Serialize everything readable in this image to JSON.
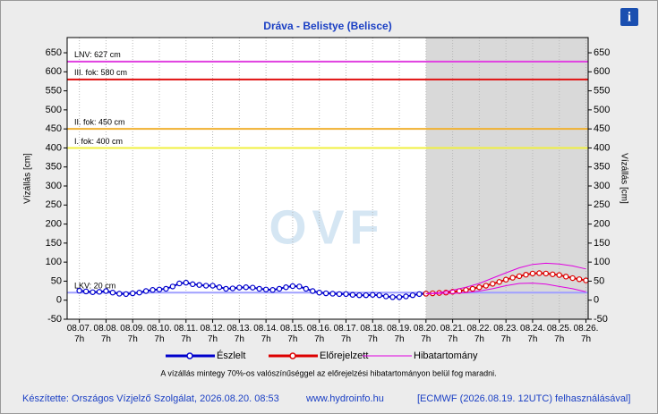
{
  "chart_data": {
    "type": "line",
    "title": "Dráva - Belistye (Belisce)",
    "y_label": "Vízállás [cm]",
    "watermark": "OVF",
    "ylim": [
      -50,
      690
    ],
    "yticks": [
      -50,
      0,
      50,
      100,
      150,
      200,
      250,
      300,
      350,
      400,
      450,
      500,
      550,
      600,
      650
    ],
    "xlim": [
      "08.06. 20h",
      "08.26. 9h"
    ],
    "xticks": [
      "08.07. 7h",
      "08.08. 7h",
      "08.09. 7h",
      "08.10. 7h",
      "08.11. 7h",
      "08.12. 7h",
      "08.13. 7h",
      "08.14. 7h",
      "08.15. 7h",
      "08.16. 7h",
      "08.17. 7h",
      "08.18. 7h",
      "08.19. 7h",
      "08.20. 7h",
      "08.21. 7h",
      "08.22. 7h",
      "08.23. 7h",
      "08.24. 7h",
      "08.25. 7h",
      "08.26. 7h"
    ],
    "grid": true,
    "reference_lines": [
      {
        "label": "LNV: 627 cm",
        "value": 627,
        "color": "#e040e0"
      },
      {
        "label": "III. fok: 580 cm",
        "value": 580,
        "color": "#e01010"
      },
      {
        "label": "II. fok: 450 cm",
        "value": 450,
        "color": "#f0b030"
      },
      {
        "label": "I. fok: 400 cm",
        "value": 400,
        "color": "#f0f040"
      },
      {
        "label": "LKV: 20 cm",
        "value": 20,
        "color": "#a0a0ff"
      }
    ],
    "series": [
      {
        "name": "Észlelt",
        "color": "#0000cc",
        "x": [
          "08.07. 7h",
          "08.07. 13h",
          "08.07. 19h",
          "08.08. 1h",
          "08.08. 7h",
          "08.08. 13h",
          "08.08. 19h",
          "08.09. 1h",
          "08.09. 7h",
          "08.09. 13h",
          "08.09. 19h",
          "08.10. 1h",
          "08.10. 7h",
          "08.10. 13h",
          "08.10. 19h",
          "08.11. 1h",
          "08.11. 7h",
          "08.11. 13h",
          "08.11. 19h",
          "08.12. 1h",
          "08.12. 7h",
          "08.12. 13h",
          "08.12. 19h",
          "08.13. 1h",
          "08.13. 7h",
          "08.13. 13h",
          "08.13. 19h",
          "08.14. 1h",
          "08.14. 7h",
          "08.14. 13h",
          "08.14. 19h",
          "08.15. 1h",
          "08.15. 7h",
          "08.15. 13h",
          "08.15. 19h",
          "08.16. 1h",
          "08.16. 7h",
          "08.16. 13h",
          "08.16. 19h",
          "08.17. 1h",
          "08.17. 7h",
          "08.17. 13h",
          "08.17. 19h",
          "08.18. 1h",
          "08.18. 7h",
          "08.18. 13h",
          "08.18. 19h",
          "08.19. 1h",
          "08.19. 7h",
          "08.19. 13h",
          "08.19. 19h",
          "08.20. 1h",
          "08.20. 7h"
        ],
        "values": [
          25,
          23,
          21,
          22,
          24,
          20,
          17,
          16,
          18,
          20,
          24,
          27,
          28,
          30,
          36,
          44,
          46,
          42,
          40,
          38,
          38,
          34,
          30,
          31,
          33,
          34,
          33,
          30,
          28,
          27,
          30,
          34,
          37,
          36,
          30,
          24,
          20,
          18,
          17,
          16,
          16,
          14,
          13,
          13,
          14,
          13,
          10,
          8,
          8,
          10,
          13,
          16,
          17
        ]
      },
      {
        "name": "Előrejelzett",
        "color": "#dd0000",
        "x": [
          "08.20. 7h",
          "08.20. 13h",
          "08.20. 19h",
          "08.21. 1h",
          "08.21. 7h",
          "08.21. 13h",
          "08.21. 19h",
          "08.22. 1h",
          "08.22. 7h",
          "08.22. 13h",
          "08.22. 19h",
          "08.23. 1h",
          "08.23. 7h",
          "08.23. 13h",
          "08.23. 19h",
          "08.24. 1h",
          "08.24. 7h",
          "08.24. 13h",
          "08.24. 19h",
          "08.25. 1h",
          "08.25. 7h",
          "08.25. 13h",
          "08.25. 19h",
          "08.26. 1h",
          "08.26. 7h"
        ],
        "values": [
          17,
          18,
          19,
          20,
          22,
          24,
          27,
          30,
          34,
          38,
          43,
          48,
          54,
          59,
          63,
          67,
          70,
          71,
          70,
          68,
          66,
          62,
          58,
          55,
          52
        ]
      },
      {
        "name": "Hibatartomány",
        "color": "#e000e0",
        "x": [
          "08.20. 7h",
          "08.20. 19h",
          "08.21. 7h",
          "08.21. 19h",
          "08.22. 7h",
          "08.22. 19h",
          "08.23. 7h",
          "08.23. 19h",
          "08.24. 7h",
          "08.24. 19h",
          "08.25. 7h",
          "08.25. 19h",
          "08.26. 7h"
        ],
        "upper": [
          17,
          20,
          26,
          34,
          44,
          58,
          72,
          85,
          94,
          97,
          95,
          90,
          82
        ],
        "lower": [
          17,
          18,
          18,
          20,
          24,
          30,
          38,
          44,
          45,
          42,
          36,
          30,
          22
        ]
      }
    ],
    "note": "A vízállás mintegy 70%-os valószínűséggel az előrejelzési hibatartományon belül fog maradni.",
    "footer": {
      "author": "Készítette: Országos Vízjelző Szolgálat, 2026.08.20. 08:53",
      "site": "www.hydroinfo.hu",
      "source": "[ECMWF (2026.08.19. 12UTC) felhasználásával]"
    }
  }
}
